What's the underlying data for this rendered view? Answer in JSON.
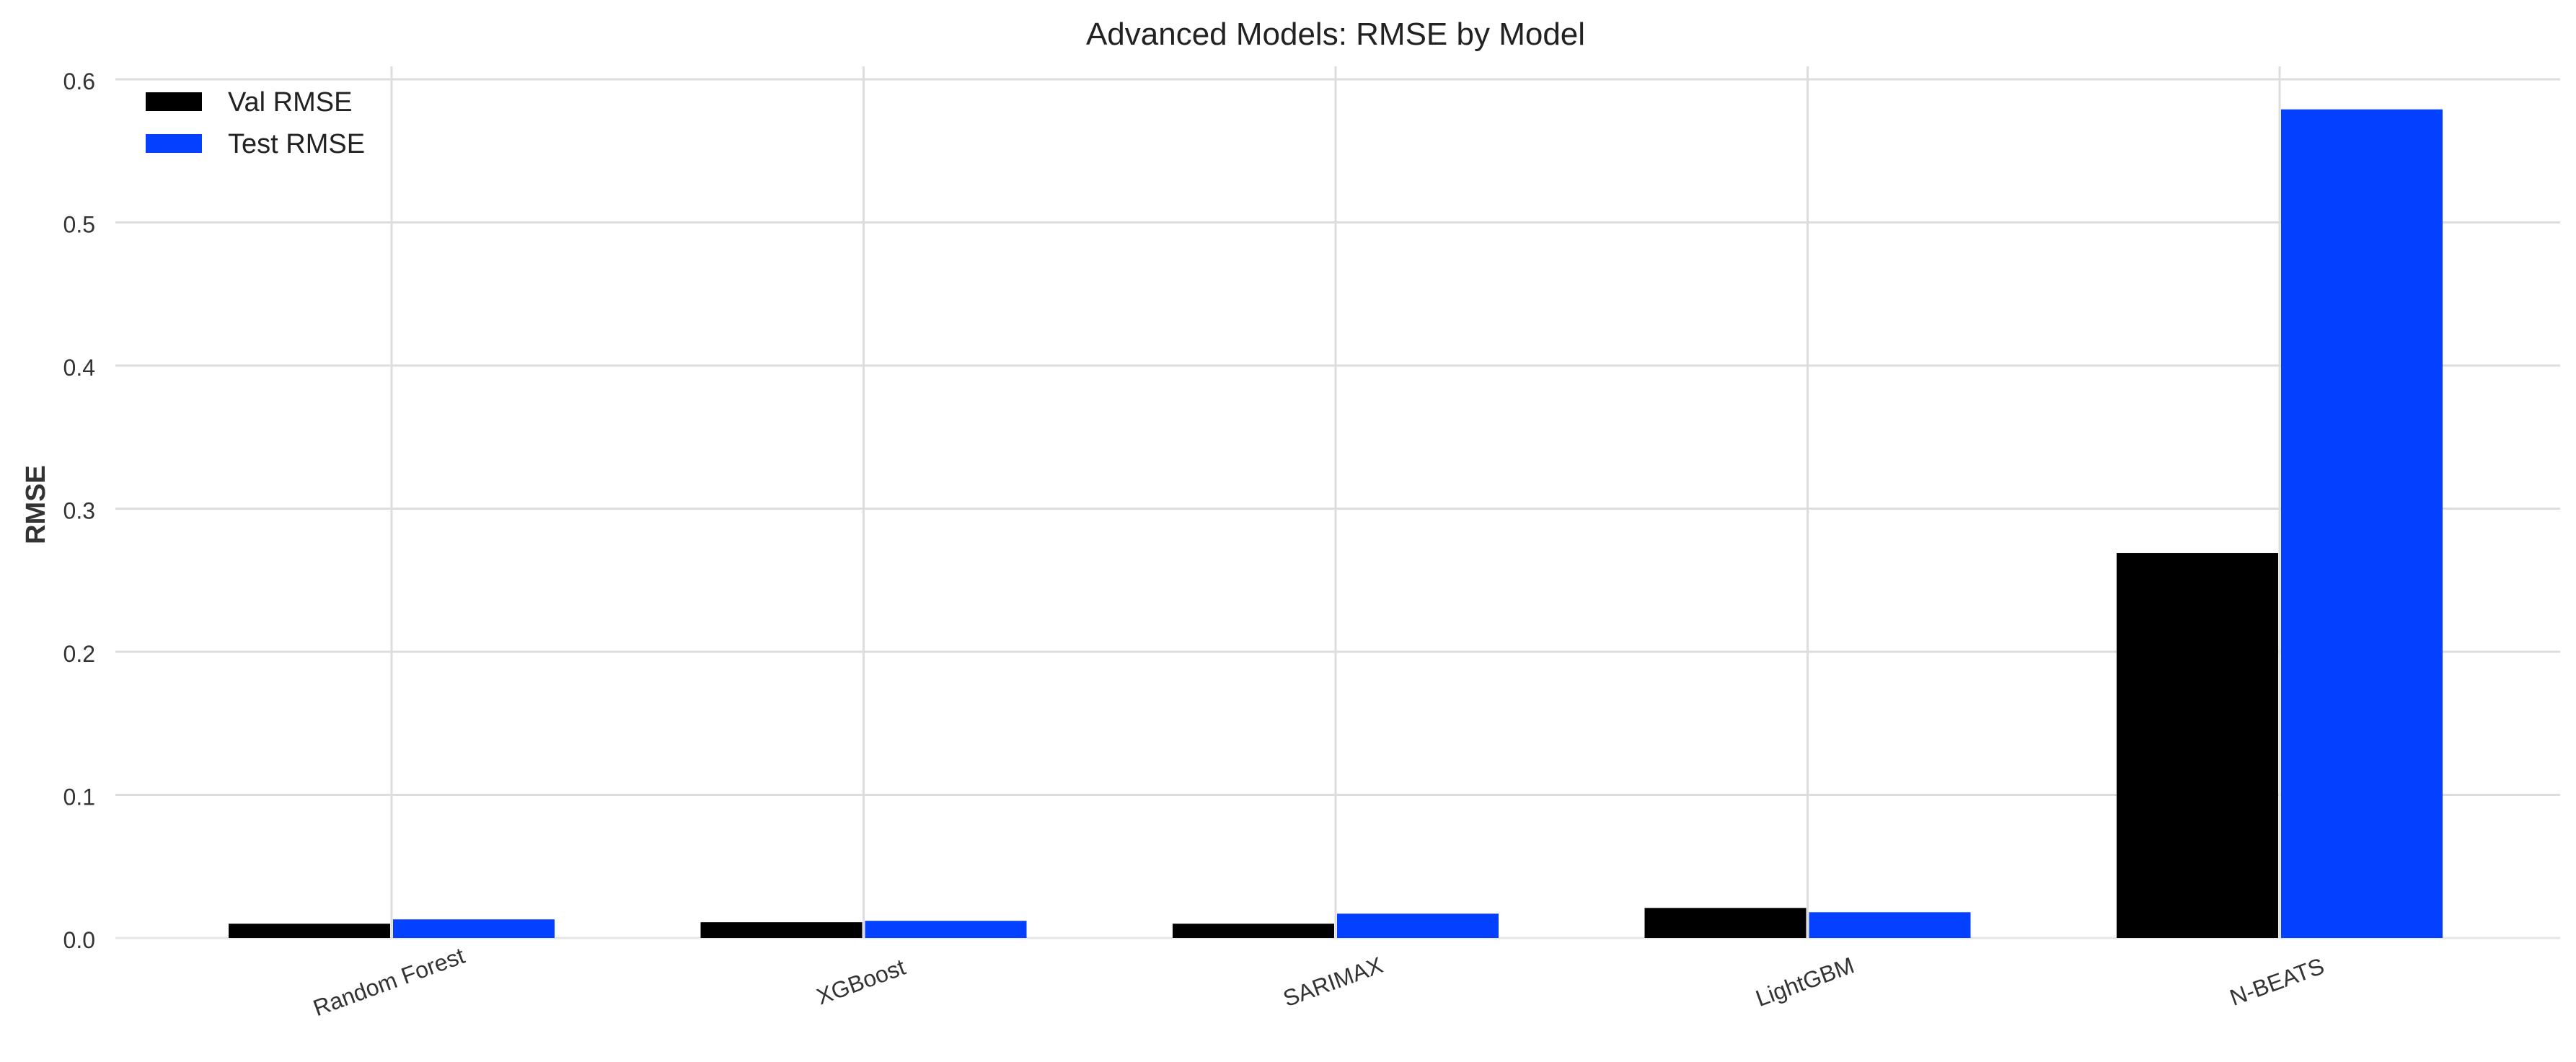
{
  "chart_data": {
    "type": "bar",
    "title": "Advanced Models: RMSE by Model",
    "xlabel": "",
    "ylabel": "RMSE",
    "categories": [
      "Random Forest",
      "XGBoost",
      "SARIMAX",
      "LightGBM",
      "N-BEATS"
    ],
    "series": [
      {
        "name": "Val RMSE",
        "color": "#000000",
        "values": [
          0.01,
          0.011,
          0.01,
          0.021,
          0.269
        ]
      },
      {
        "name": "Test RMSE",
        "color": "#0340FF",
        "values": [
          0.013,
          0.012,
          0.017,
          0.018,
          0.579
        ]
      }
    ],
    "ylim": [
      0,
      0.6
    ],
    "yticks": [
      "0.0",
      "0.1",
      "0.2",
      "0.3",
      "0.4",
      "0.5",
      "0.6"
    ],
    "grid": true,
    "legend_position": "top-left"
  }
}
